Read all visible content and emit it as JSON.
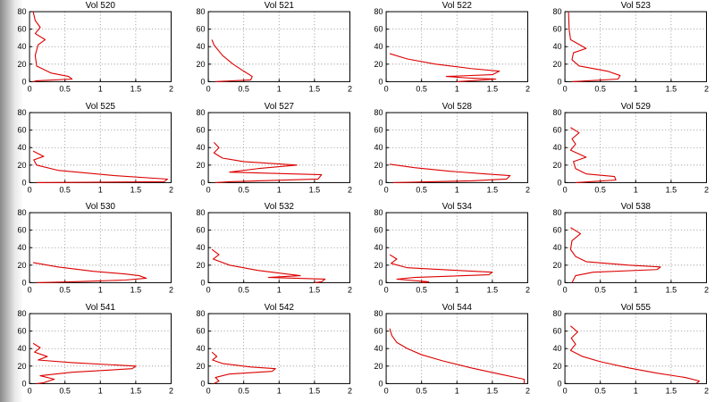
{
  "window": {
    "background": "#ffffff",
    "edge_gradient_from": "#8a8a8a",
    "edge_gradient_to": "#ffffff"
  },
  "chart_layout": {
    "grid_rows": 4,
    "grid_cols": 4,
    "xlim": [
      0,
      2
    ],
    "ylim": [
      0,
      80
    ],
    "xticks": [
      0,
      0.5,
      1,
      1.5,
      2
    ],
    "yticks": [
      0,
      20,
      40,
      60,
      80
    ],
    "xtick_labels": [
      "0",
      "0.5",
      "1",
      "1.5",
      "2"
    ],
    "ytick_labels": [
      "0",
      "20",
      "40",
      "60",
      "80"
    ],
    "grid": "dotted",
    "grid_color": "#808080",
    "axes_color": "#000000",
    "line_color": "#dd0000",
    "legend": "none",
    "xlabel": "",
    "ylabel": ""
  },
  "chart_data": [
    {
      "type": "line",
      "title": "Vol 520",
      "xlim": [
        0,
        2
      ],
      "ylim": [
        0,
        80
      ],
      "points": [
        [
          0.05,
          80
        ],
        [
          0.08,
          70
        ],
        [
          0.15,
          62
        ],
        [
          0.08,
          55
        ],
        [
          0.22,
          48
        ],
        [
          0.12,
          42
        ],
        [
          0.08,
          30
        ],
        [
          0.1,
          18
        ],
        [
          0.3,
          10
        ],
        [
          0.55,
          6
        ],
        [
          0.6,
          3
        ],
        [
          0.1,
          1
        ],
        [
          0.05,
          0
        ]
      ]
    },
    {
      "type": "line",
      "title": "Vol 521",
      "xlim": [
        0,
        2
      ],
      "ylim": [
        0,
        80
      ],
      "points": [
        [
          0.05,
          48
        ],
        [
          0.08,
          42
        ],
        [
          0.2,
          30
        ],
        [
          0.35,
          20
        ],
        [
          0.5,
          12
        ],
        [
          0.62,
          6
        ],
        [
          0.6,
          2
        ],
        [
          0.1,
          0
        ]
      ]
    },
    {
      "type": "line",
      "title": "Vol 522",
      "xlim": [
        0,
        2
      ],
      "ylim": [
        0,
        80
      ],
      "points": [
        [
          0.05,
          32
        ],
        [
          0.3,
          26
        ],
        [
          0.7,
          20
        ],
        [
          1.2,
          15
        ],
        [
          1.6,
          12
        ],
        [
          1.5,
          8
        ],
        [
          0.85,
          6
        ],
        [
          1.2,
          4
        ],
        [
          1.55,
          3
        ],
        [
          1.0,
          0
        ]
      ]
    },
    {
      "type": "line",
      "title": "Vol 523",
      "xlim": [
        0,
        2
      ],
      "ylim": [
        0,
        80
      ],
      "points": [
        [
          0.05,
          80
        ],
        [
          0.06,
          60
        ],
        [
          0.08,
          48
        ],
        [
          0.3,
          38
        ],
        [
          0.12,
          33
        ],
        [
          0.1,
          25
        ],
        [
          0.2,
          18
        ],
        [
          0.6,
          12
        ],
        [
          0.78,
          7
        ],
        [
          0.75,
          3
        ],
        [
          0.1,
          0
        ]
      ]
    },
    {
      "type": "line",
      "title": "Vol 525",
      "xlim": [
        0,
        2
      ],
      "ylim": [
        0,
        80
      ],
      "points": [
        [
          0.05,
          36
        ],
        [
          0.2,
          30
        ],
        [
          0.06,
          26
        ],
        [
          0.1,
          20
        ],
        [
          0.4,
          14
        ],
        [
          1.2,
          8
        ],
        [
          1.95,
          4
        ],
        [
          1.9,
          1
        ],
        [
          0.1,
          0
        ]
      ]
    },
    {
      "type": "line",
      "title": "Vol 527",
      "xlim": [
        0,
        2
      ],
      "ylim": [
        0,
        80
      ],
      "points": [
        [
          0.08,
          46
        ],
        [
          0.15,
          40
        ],
        [
          0.08,
          34
        ],
        [
          0.2,
          28
        ],
        [
          0.5,
          24
        ],
        [
          1.25,
          20
        ],
        [
          0.7,
          16
        ],
        [
          0.3,
          12
        ],
        [
          1.6,
          9
        ],
        [
          1.55,
          4
        ],
        [
          0.3,
          1
        ],
        [
          0.1,
          0
        ]
      ]
    },
    {
      "type": "line",
      "title": "Vol 528",
      "xlim": [
        0,
        2
      ],
      "ylim": [
        0,
        80
      ],
      "points": [
        [
          0.05,
          21
        ],
        [
          0.4,
          17
        ],
        [
          0.9,
          13
        ],
        [
          1.4,
          10
        ],
        [
          1.75,
          8
        ],
        [
          1.7,
          4
        ],
        [
          1.2,
          2
        ],
        [
          0.1,
          0
        ]
      ]
    },
    {
      "type": "line",
      "title": "Vol 529",
      "xlim": [
        0,
        2
      ],
      "ylim": [
        0,
        80
      ],
      "points": [
        [
          0.08,
          63
        ],
        [
          0.2,
          57
        ],
        [
          0.1,
          50
        ],
        [
          0.15,
          44
        ],
        [
          0.08,
          37
        ],
        [
          0.3,
          29
        ],
        [
          0.12,
          24
        ],
        [
          0.15,
          16
        ],
        [
          0.3,
          10
        ],
        [
          0.7,
          7
        ],
        [
          0.72,
          3
        ],
        [
          0.15,
          0
        ]
      ]
    },
    {
      "type": "line",
      "title": "Vol 530",
      "xlim": [
        0,
        2
      ],
      "ylim": [
        0,
        80
      ],
      "points": [
        [
          0.05,
          23
        ],
        [
          0.4,
          18
        ],
        [
          0.9,
          13
        ],
        [
          1.35,
          10
        ],
        [
          1.55,
          8
        ],
        [
          1.65,
          5
        ],
        [
          1.35,
          3
        ],
        [
          0.6,
          1
        ],
        [
          0.1,
          0
        ]
      ]
    },
    {
      "type": "line",
      "title": "Vol 532",
      "xlim": [
        0,
        2
      ],
      "ylim": [
        0,
        80
      ],
      "points": [
        [
          0.05,
          38
        ],
        [
          0.15,
          32
        ],
        [
          0.07,
          27
        ],
        [
          0.3,
          20
        ],
        [
          0.7,
          14
        ],
        [
          1.0,
          11
        ],
        [
          1.3,
          8
        ],
        [
          0.85,
          6
        ],
        [
          1.65,
          4
        ],
        [
          1.6,
          1
        ],
        [
          1.5,
          0
        ]
      ]
    },
    {
      "type": "line",
      "title": "Vol 534",
      "xlim": [
        0,
        2
      ],
      "ylim": [
        0,
        80
      ],
      "points": [
        [
          0.05,
          32
        ],
        [
          0.15,
          27
        ],
        [
          0.07,
          22
        ],
        [
          0.3,
          17
        ],
        [
          1.0,
          14
        ],
        [
          1.5,
          12
        ],
        [
          1.45,
          9
        ],
        [
          0.4,
          6
        ],
        [
          0.15,
          4
        ],
        [
          0.6,
          1
        ],
        [
          0.5,
          0
        ]
      ]
    },
    {
      "type": "line",
      "title": "Vol 538",
      "xlim": [
        0,
        2
      ],
      "ylim": [
        0,
        80
      ],
      "points": [
        [
          0.08,
          63
        ],
        [
          0.22,
          56
        ],
        [
          0.1,
          48
        ],
        [
          0.08,
          38
        ],
        [
          0.15,
          30
        ],
        [
          0.3,
          24
        ],
        [
          0.9,
          20
        ],
        [
          1.35,
          18
        ],
        [
          1.3,
          15
        ],
        [
          0.4,
          12
        ],
        [
          0.15,
          8
        ],
        [
          0.1,
          0
        ]
      ]
    },
    {
      "type": "line",
      "title": "Vol 541",
      "xlim": [
        0,
        2
      ],
      "ylim": [
        0,
        80
      ],
      "points": [
        [
          0.05,
          46
        ],
        [
          0.15,
          41
        ],
        [
          0.07,
          36
        ],
        [
          0.25,
          31
        ],
        [
          0.12,
          27
        ],
        [
          0.6,
          24
        ],
        [
          1.5,
          20
        ],
        [
          1.45,
          17
        ],
        [
          0.6,
          13
        ],
        [
          0.15,
          9
        ],
        [
          0.35,
          5
        ],
        [
          0.2,
          1
        ],
        [
          0.1,
          0
        ]
      ]
    },
    {
      "type": "line",
      "title": "Vol 542",
      "xlim": [
        0,
        2
      ],
      "ylim": [
        0,
        80
      ],
      "points": [
        [
          0.05,
          36
        ],
        [
          0.12,
          31
        ],
        [
          0.06,
          27
        ],
        [
          0.2,
          23
        ],
        [
          0.6,
          19
        ],
        [
          0.95,
          17
        ],
        [
          0.9,
          14
        ],
        [
          0.3,
          11
        ],
        [
          0.1,
          7
        ],
        [
          0.15,
          3
        ],
        [
          0.08,
          0
        ]
      ]
    },
    {
      "type": "line",
      "title": "Vol 544",
      "xlim": [
        0,
        2
      ],
      "ylim": [
        0,
        80
      ],
      "points": [
        [
          0.05,
          63
        ],
        [
          0.08,
          55
        ],
        [
          0.15,
          47
        ],
        [
          0.3,
          40
        ],
        [
          0.5,
          33
        ],
        [
          0.8,
          26
        ],
        [
          1.2,
          18
        ],
        [
          1.6,
          11
        ],
        [
          1.95,
          5
        ],
        [
          1.95,
          0
        ]
      ]
    },
    {
      "type": "line",
      "title": "Vol 555",
      "xlim": [
        0,
        2
      ],
      "ylim": [
        0,
        80
      ],
      "points": [
        [
          0.08,
          66
        ],
        [
          0.18,
          59
        ],
        [
          0.09,
          52
        ],
        [
          0.15,
          45
        ],
        [
          0.08,
          38
        ],
        [
          0.25,
          31
        ],
        [
          0.5,
          25
        ],
        [
          0.9,
          18
        ],
        [
          1.3,
          12
        ],
        [
          1.7,
          7
        ],
        [
          1.9,
          3
        ],
        [
          1.85,
          0
        ]
      ]
    }
  ]
}
